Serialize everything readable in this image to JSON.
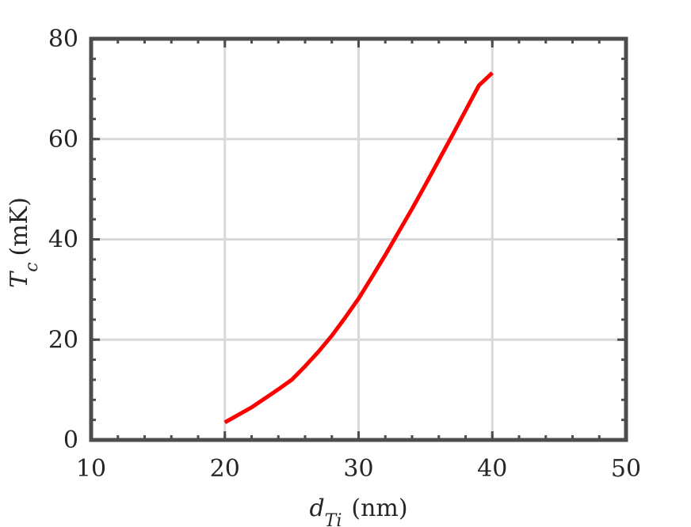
{
  "chart_data": {
    "type": "line",
    "title": "",
    "xlabel": {
      "symbol": "d",
      "subscript": "Ti",
      "unit": "(nm)"
    },
    "ylabel": {
      "symbol": "T",
      "subscript": "c",
      "unit": "(mK)"
    },
    "xlim": [
      10,
      50
    ],
    "ylim": [
      0,
      80
    ],
    "xticks": [
      10,
      20,
      30,
      40,
      50
    ],
    "yticks": [
      0,
      20,
      40,
      60,
      80
    ],
    "x_tick_labels": [
      "10",
      "20",
      "30",
      "40",
      "50"
    ],
    "y_tick_labels": [
      "0",
      "20",
      "40",
      "60",
      "80"
    ],
    "grid": true,
    "legend": "none",
    "series": [
      {
        "color": "#ff0000",
        "x": [
          20,
          21,
          22,
          23,
          24,
          25,
          26,
          27,
          28,
          29,
          30,
          31,
          32,
          33,
          34,
          35,
          36,
          37,
          38,
          39,
          40
        ],
        "y": [
          3.5,
          5.0,
          6.5,
          8.3,
          10.1,
          12.0,
          14.7,
          17.6,
          20.8,
          24.4,
          28.2,
          32.5,
          36.9,
          41.5,
          46.1,
          50.9,
          55.8,
          60.7,
          65.7,
          70.7,
          73.2
        ]
      }
    ]
  }
}
